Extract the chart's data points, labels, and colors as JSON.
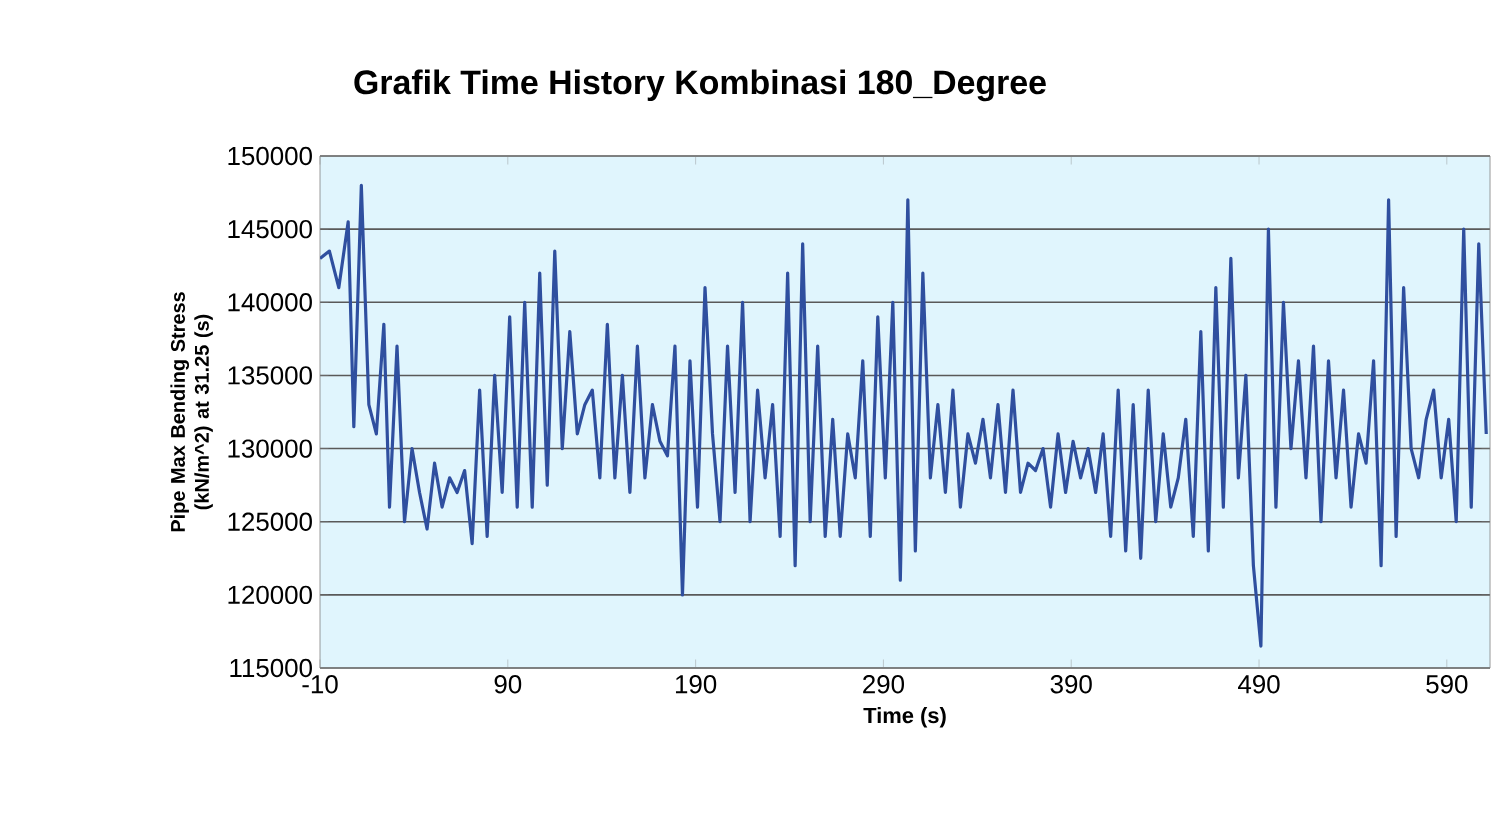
{
  "chart_data": {
    "type": "line",
    "title": "Grafik Time History Kombinasi 180_Degree",
    "xlabel": "Time (s)",
    "ylabel": "Pipe Max Bending Stress (kN/m^2) at 31.25 (s)",
    "x": [
      -10,
      -5,
      0,
      5,
      8,
      12,
      16,
      20,
      24,
      27,
      31,
      35,
      39,
      43,
      47,
      51,
      55,
      59,
      63,
      67,
      71,
      75,
      79,
      83,
      87,
      91,
      95,
      99,
      103,
      107,
      111,
      115,
      119,
      123,
      127,
      131,
      135,
      139,
      143,
      147,
      151,
      155,
      159,
      163,
      167,
      171,
      175,
      179,
      183,
      187,
      191,
      195,
      199,
      203,
      207,
      211,
      215,
      219,
      223,
      227,
      231,
      235,
      239,
      243,
      247,
      251,
      255,
      259,
      263,
      267,
      271,
      275,
      279,
      283,
      287,
      291,
      295,
      299,
      303,
      307,
      311,
      315,
      319,
      323,
      327,
      331,
      335,
      339,
      343,
      347,
      351,
      355,
      359,
      363,
      367,
      371,
      375,
      379,
      383,
      387,
      391,
      395,
      399,
      403,
      407,
      411,
      415,
      419,
      423,
      427,
      431,
      435,
      439,
      443,
      447,
      451,
      455,
      459,
      463,
      467,
      471,
      475,
      479,
      483,
      487,
      491,
      495,
      499,
      503,
      507,
      511,
      515,
      519,
      523,
      527,
      531,
      535,
      539,
      543,
      547,
      551,
      555,
      559,
      563,
      567,
      571,
      575,
      579,
      583,
      587,
      591,
      595,
      599,
      603,
      607,
      611
    ],
    "series": [
      {
        "color": "#2f4f9f",
        "values": [
          143000,
          143500,
          141000,
          145500,
          131500,
          148000,
          133000,
          131000,
          138500,
          126000,
          137000,
          125000,
          130000,
          127000,
          124500,
          129000,
          126000,
          128000,
          127000,
          128500,
          123500,
          134000,
          124000,
          135000,
          127000,
          139000,
          126000,
          140000,
          126000,
          142000,
          127500,
          143500,
          130000,
          138000,
          131000,
          133000,
          134000,
          128000,
          138500,
          128000,
          135000,
          127000,
          137000,
          128000,
          133000,
          130500,
          129500,
          137000,
          120000,
          136000,
          126000,
          141000,
          131000,
          125000,
          137000,
          127000,
          140000,
          125000,
          134000,
          128000,
          133000,
          124000,
          142000,
          122000,
          144000,
          125000,
          137000,
          124000,
          132000,
          124000,
          131000,
          128000,
          136000,
          124000,
          139000,
          128000,
          140000,
          121000,
          147000,
          123000,
          142000,
          128000,
          133000,
          127000,
          134000,
          126000,
          131000,
          129000,
          132000,
          128000,
          133000,
          127000,
          134000,
          127000,
          129000,
          128500,
          130000,
          126000,
          131000,
          127000,
          130500,
          128000,
          130000,
          127000,
          131000,
          124000,
          134000,
          123000,
          133000,
          122500,
          134000,
          125000,
          131000,
          126000,
          128000,
          132000,
          124000,
          138000,
          123000,
          141000,
          126000,
          143000,
          128000,
          135000,
          122000,
          116500,
          145000,
          126000,
          140000,
          130000,
          136000,
          128000,
          137000,
          125000,
          136000,
          128000,
          134000,
          126000,
          131000,
          129000,
          136000,
          122000,
          147000,
          124000,
          141000,
          130000,
          128000,
          132000,
          134000,
          128000,
          132000,
          125000,
          145000,
          126000,
          144000,
          131000
        ]
      }
    ],
    "xlim": [
      -10,
      613
    ],
    "xticks": [
      -10,
      90,
      190,
      290,
      390,
      490,
      590
    ],
    "ylim": [
      115000,
      150000
    ],
    "yticks": [
      115000,
      120000,
      125000,
      130000,
      135000,
      140000,
      145000,
      150000
    ],
    "grid": "y",
    "marker": "none",
    "line_style": "solid"
  }
}
